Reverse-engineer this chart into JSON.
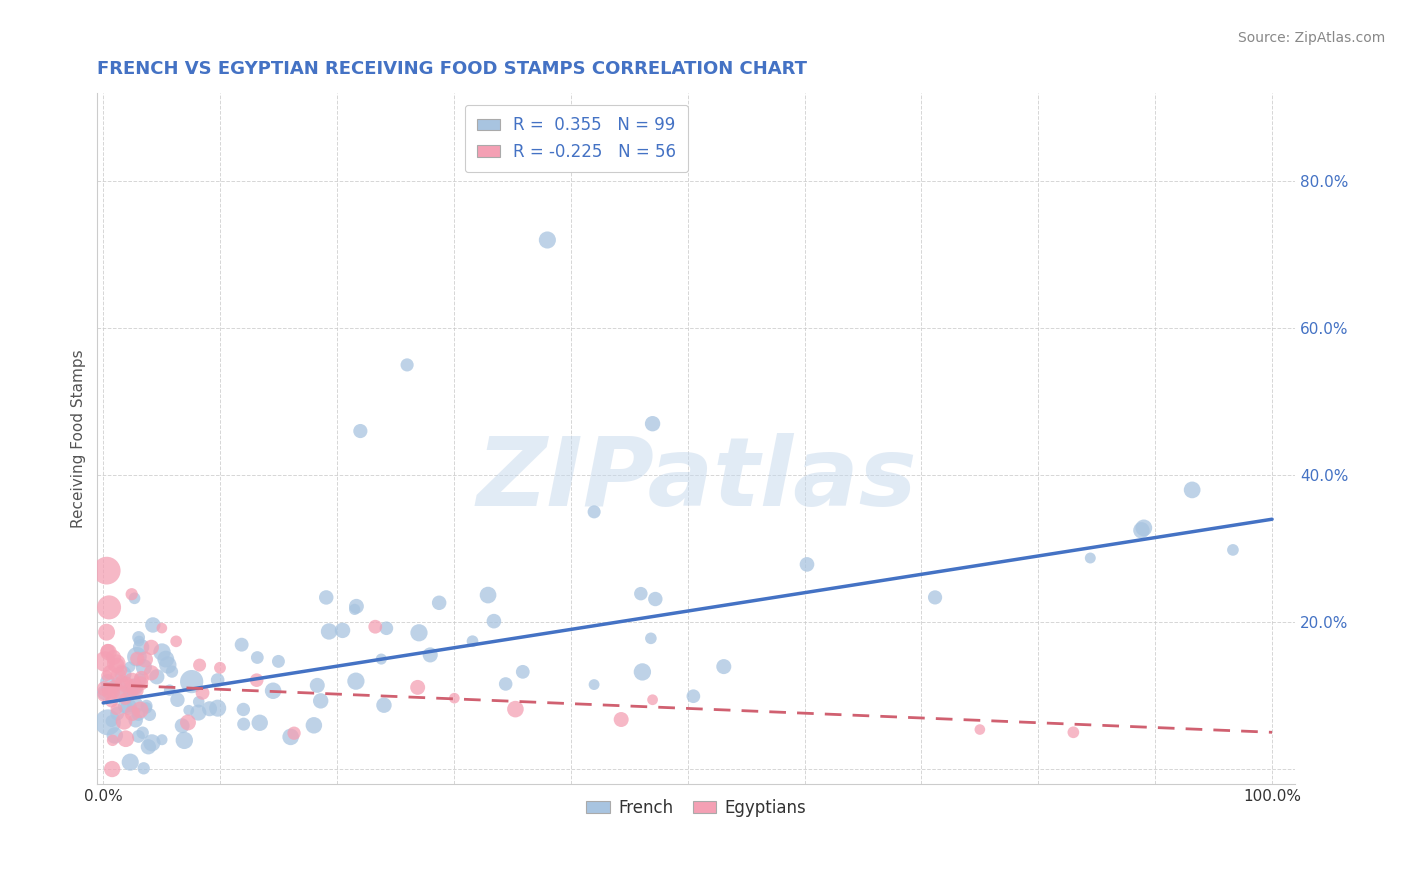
{
  "title": "FRENCH VS EGYPTIAN RECEIVING FOOD STAMPS CORRELATION CHART",
  "source": "Source: ZipAtlas.com",
  "ylabel": "Receiving Food Stamps",
  "xlim": [
    -0.005,
    1.02
  ],
  "ylim": [
    -0.02,
    0.92
  ],
  "xtick_show": [
    0.0,
    1.0
  ],
  "yticks": [
    0.0,
    0.2,
    0.4,
    0.6,
    0.8
  ],
  "french_R": 0.355,
  "french_N": 99,
  "egyptian_R": -0.225,
  "egyptian_N": 56,
  "blue_color": "#a8c4e0",
  "blue_line_color": "#4472c4",
  "pink_color": "#f4a0b4",
  "pink_line_color": "#d06070",
  "watermark": "ZIPatlas",
  "background_color": "#ffffff",
  "grid_color": "#cccccc",
  "title_color": "#4472c4",
  "source_color": "#888888",
  "yticklabel_color": "#4472c4",
  "french_slope": 0.25,
  "french_intercept": 0.09,
  "egyptian_slope": -0.065,
  "egyptian_intercept": 0.115
}
